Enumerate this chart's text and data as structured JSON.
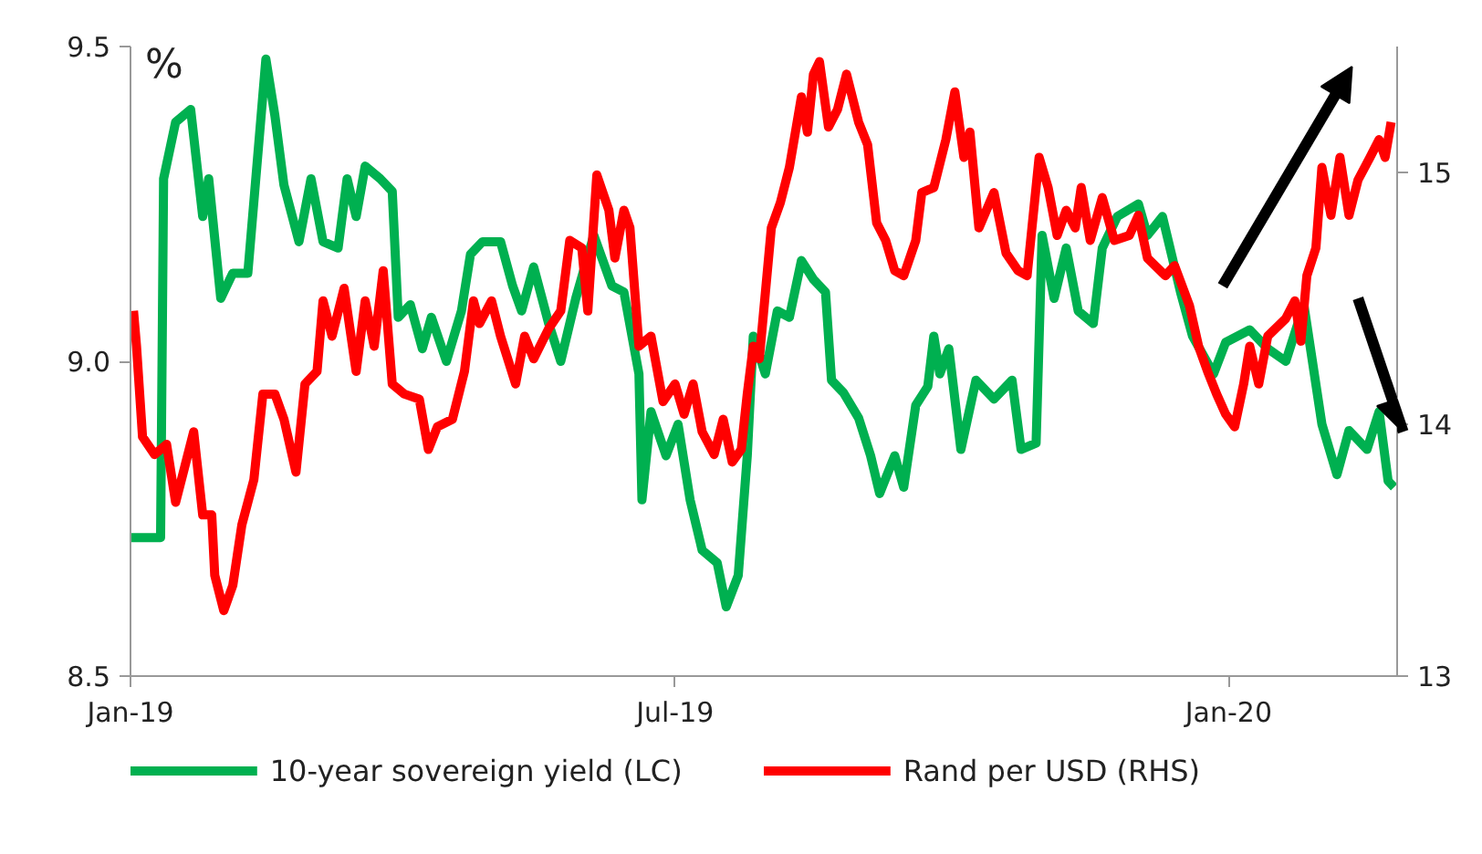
{
  "chart_data": {
    "type": "line",
    "ylabel": "%",
    "xlim": [
      "2019-01-01",
      "2020-02-26"
    ],
    "xticks": [
      {
        "value": "2019-01-01",
        "label": "Jan-19"
      },
      {
        "value": "2019-07-01",
        "label": "Jul-19"
      },
      {
        "value": "2020-01-01",
        "label": "Jan-20"
      }
    ],
    "ylim": [
      8.5,
      9.5
    ],
    "yticks": [
      8.5,
      {
        "value": 9,
        "label": "9.0"
      },
      9.5
    ],
    "y2lim": [
      13,
      15.5
    ],
    "y2ticks": [
      13,
      14,
      15
    ],
    "grid": false,
    "legend": "bottom",
    "line_style": "solid",
    "marker": "none",
    "series": [
      {
        "name": "10-year sovereign yield (LC)",
        "color": "#00b050",
        "x": [
          "2019-01-01",
          "2019-01-11",
          "2019-01-12",
          "2019-01-16",
          "2019-01-21",
          "2019-01-25",
          "2019-01-27",
          "2019-01-31",
          "2019-02-04",
          "2019-02-09",
          "2019-02-12",
          "2019-02-15",
          "2019-02-18",
          "2019-02-21",
          "2019-02-26",
          "2019-03-02",
          "2019-03-06",
          "2019-03-11",
          "2019-03-14",
          "2019-03-17",
          "2019-03-20",
          "2019-03-25",
          "2019-03-29",
          "2019-03-31",
          "2019-04-04",
          "2019-04-08",
          "2019-04-11",
          "2019-04-16",
          "2019-04-21",
          "2019-04-24",
          "2019-04-28",
          "2019-05-04",
          "2019-05-08",
          "2019-05-11",
          "2019-05-15",
          "2019-05-20",
          "2019-05-24",
          "2019-05-29",
          "2019-06-04",
          "2019-06-10",
          "2019-06-14",
          "2019-06-19",
          "2019-06-20",
          "2019-06-23",
          "2019-06-28",
          "2019-07-02",
          "2019-07-06",
          "2019-07-10",
          "2019-07-15",
          "2019-07-18",
          "2019-07-22",
          "2019-07-25",
          "2019-07-27",
          "2019-07-31",
          "2019-08-04",
          "2019-08-08",
          "2019-08-12",
          "2019-08-16",
          "2019-08-20",
          "2019-08-22",
          "2019-08-26",
          "2019-08-31",
          "2019-09-04",
          "2019-09-07",
          "2019-09-12",
          "2019-09-15",
          "2019-09-19",
          "2019-09-23",
          "2019-09-25",
          "2019-09-27",
          "2019-09-30",
          "2019-10-04",
          "2019-10-09",
          "2019-10-15",
          "2019-10-21",
          "2019-10-24",
          "2019-10-29",
          "2019-10-31",
          "2019-11-04",
          "2019-11-08",
          "2019-11-12",
          "2019-11-17",
          "2019-11-20",
          "2019-11-25",
          "2019-12-02",
          "2019-12-05",
          "2019-12-10",
          "2019-12-16",
          "2019-12-20",
          "2019-12-27",
          "2019-12-31",
          "2020-01-08",
          "2020-01-14",
          "2020-01-20",
          "2020-01-26",
          "2020-02-01",
          "2020-02-06",
          "2020-02-10",
          "2020-02-16",
          "2020-02-20",
          "2020-02-23",
          "2020-02-25"
        ],
        "values": [
          8.72,
          8.72,
          9.29,
          9.38,
          9.4,
          9.23,
          9.29,
          9.1,
          9.14,
          9.14,
          9.31,
          9.48,
          9.39,
          9.28,
          9.19,
          9.29,
          9.19,
          9.18,
          9.29,
          9.23,
          9.31,
          9.29,
          9.27,
          9.07,
          9.09,
          9.02,
          9.07,
          9.0,
          9.08,
          9.17,
          9.19,
          9.19,
          9.12,
          9.08,
          9.15,
          9.06,
          9.0,
          9.1,
          9.2,
          9.12,
          9.11,
          8.98,
          8.78,
          8.92,
          8.85,
          8.9,
          8.78,
          8.7,
          8.68,
          8.61,
          8.66,
          8.85,
          9.04,
          8.98,
          9.08,
          9.07,
          9.16,
          9.13,
          9.11,
          8.97,
          8.95,
          8.91,
          8.85,
          8.79,
          8.85,
          8.8,
          8.93,
          8.96,
          9.04,
          8.98,
          9.02,
          8.86,
          8.97,
          8.94,
          8.97,
          8.86,
          8.87,
          9.2,
          9.1,
          9.18,
          9.08,
          9.06,
          9.18,
          9.23,
          9.25,
          9.2,
          9.23,
          9.11,
          9.04,
          8.98,
          9.03,
          9.05,
          9.02,
          9.0,
          9.09,
          8.9,
          8.82,
          8.89,
          8.86,
          8.92,
          8.81,
          8.8
        ]
      },
      {
        "name": "Rand per USD (RHS)",
        "color": "#ff0000",
        "axis": "y2",
        "x": [
          "2019-01-02",
          "2019-01-03",
          "2019-01-05",
          "2019-01-09",
          "2019-01-13",
          "2019-01-16",
          "2019-01-19",
          "2019-01-22",
          "2019-01-25",
          "2019-01-28",
          "2019-01-29",
          "2019-02-01",
          "2019-02-04",
          "2019-02-07",
          "2019-02-11",
          "2019-02-14",
          "2019-02-18",
          "2019-02-21",
          "2019-02-25",
          "2019-02-28",
          "2019-03-04",
          "2019-03-06",
          "2019-03-09",
          "2019-03-13",
          "2019-03-17",
          "2019-03-20",
          "2019-03-23",
          "2019-03-26",
          "2019-03-29",
          "2019-04-02",
          "2019-04-07",
          "2019-04-10",
          "2019-04-13",
          "2019-04-18",
          "2019-04-22",
          "2019-04-25",
          "2019-04-27",
          "2019-05-01",
          "2019-05-04",
          "2019-05-09",
          "2019-05-12",
          "2019-05-15",
          "2019-05-20",
          "2019-05-24",
          "2019-05-27",
          "2019-05-31",
          "2019-06-02",
          "2019-06-05",
          "2019-06-09",
          "2019-06-11",
          "2019-06-14",
          "2019-06-16",
          "2019-06-19",
          "2019-06-23",
          "2019-06-27",
          "2019-07-01",
          "2019-07-04",
          "2019-07-07",
          "2019-07-10",
          "2019-07-14",
          "2019-07-17",
          "2019-07-20",
          "2019-07-23",
          "2019-07-25",
          "2019-07-27",
          "2019-07-29",
          "2019-07-31",
          "2019-08-02",
          "2019-08-05",
          "2019-08-08",
          "2019-08-11",
          "2019-08-12",
          "2019-08-14",
          "2019-08-16",
          "2019-08-18",
          "2019-08-21",
          "2019-08-24",
          "2019-08-27",
          "2019-08-31",
          "2019-09-03",
          "2019-09-06",
          "2019-09-09",
          "2019-09-12",
          "2019-09-15",
          "2019-09-19",
          "2019-09-21",
          "2019-09-25",
          "2019-09-29",
          "2019-10-02",
          "2019-10-05",
          "2019-10-07",
          "2019-10-10",
          "2019-10-15",
          "2019-10-19",
          "2019-10-23",
          "2019-10-26",
          "2019-10-30",
          "2019-11-02",
          "2019-11-05",
          "2019-11-08",
          "2019-11-11",
          "2019-11-13",
          "2019-11-16",
          "2019-11-20",
          "2019-11-24",
          "2019-11-29",
          "2019-12-02",
          "2019-12-05",
          "2019-12-11",
          "2019-12-14",
          "2019-12-19",
          "2019-12-22",
          "2019-12-25",
          "2019-12-28",
          "2019-12-31",
          "2020-01-03",
          "2020-01-06",
          "2020-01-08",
          "2020-01-11",
          "2020-01-14",
          "2020-01-20",
          "2020-01-23",
          "2020-01-25",
          "2020-01-27",
          "2020-01-30",
          "2020-02-01",
          "2020-02-04",
          "2020-02-07",
          "2020-02-10",
          "2020-02-13",
          "2020-02-17",
          "2020-02-20",
          "2020-02-22",
          "2020-02-24"
        ],
        "values": [
          14.45,
          14.31,
          13.95,
          13.88,
          13.92,
          13.69,
          13.83,
          13.97,
          13.64,
          13.64,
          13.4,
          13.26,
          13.36,
          13.6,
          13.78,
          14.12,
          14.12,
          14.02,
          13.81,
          14.16,
          14.21,
          14.49,
          14.35,
          14.54,
          14.21,
          14.49,
          14.31,
          14.61,
          14.16,
          14.12,
          14.1,
          13.9,
          13.99,
          14.02,
          14.21,
          14.49,
          14.4,
          14.49,
          14.35,
          14.16,
          14.35,
          14.26,
          14.38,
          14.45,
          14.73,
          14.7,
          14.45,
          14.99,
          14.85,
          14.66,
          14.85,
          14.78,
          14.31,
          14.35,
          14.09,
          14.16,
          14.04,
          14.16,
          13.97,
          13.88,
          14.02,
          13.85,
          13.9,
          14.12,
          14.31,
          14.26,
          14.52,
          14.78,
          14.88,
          15.02,
          15.23,
          15.3,
          15.16,
          15.39,
          15.44,
          15.18,
          15.25,
          15.39,
          15.2,
          15.11,
          14.8,
          14.73,
          14.61,
          14.59,
          14.73,
          14.92,
          14.94,
          15.13,
          15.32,
          15.06,
          15.16,
          14.78,
          14.92,
          14.68,
          14.61,
          14.59,
          15.06,
          14.94,
          14.75,
          14.85,
          14.78,
          14.94,
          14.73,
          14.9,
          14.73,
          14.75,
          14.83,
          14.66,
          14.59,
          14.63,
          14.47,
          14.31,
          14.21,
          14.12,
          14.04,
          13.99,
          14.16,
          14.31,
          14.16,
          14.35,
          14.42,
          14.49,
          14.33,
          14.59,
          14.7,
          15.02,
          14.83,
          15.06,
          14.83,
          14.97,
          15.06,
          15.13,
          15.06,
          15.2
        ]
      }
    ]
  }
}
